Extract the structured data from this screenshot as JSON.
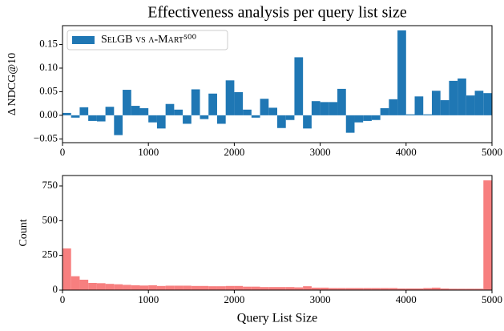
{
  "chart_data": [
    {
      "type": "bar",
      "title": "Effectiveness analysis per query list size",
      "ylabel": "Δ NDCG@10",
      "x": [
        50,
        150,
        250,
        350,
        450,
        550,
        650,
        750,
        850,
        950,
        1050,
        1150,
        1250,
        1350,
        1450,
        1550,
        1650,
        1750,
        1850,
        1950,
        2050,
        2150,
        2250,
        2350,
        2450,
        2550,
        2650,
        2750,
        2850,
        2950,
        3050,
        3150,
        3250,
        3350,
        3450,
        3550,
        3650,
        3750,
        3850,
        3950,
        4050,
        4150,
        4250,
        4350,
        4450,
        4550,
        4650,
        4750,
        4850,
        4950
      ],
      "width": 100,
      "series": [
        {
          "name": "SelGB vs λ-Mart⁵⁰⁰",
          "color": "#1f77b4",
          "values": [
            0.005,
            -0.005,
            0.017,
            -0.012,
            -0.013,
            0.018,
            -0.042,
            0.054,
            0.02,
            0.015,
            -0.015,
            -0.028,
            0.024,
            0.012,
            -0.018,
            0.055,
            -0.008,
            0.046,
            -0.018,
            0.074,
            0.049,
            0.012,
            -0.005,
            0.035,
            0.016,
            -0.027,
            -0.01,
            0.123,
            -0.028,
            0.03,
            0.028,
            0.028,
            0.056,
            -0.037,
            -0.015,
            -0.012,
            -0.01,
            0.015,
            0.034,
            0.18,
            0.002,
            0.04,
            0.002,
            0.052,
            0.032,
            0.073,
            0.078,
            0.042,
            0.052,
            0.047
          ]
        }
      ],
      "legend": "upper left",
      "xlim": [
        0,
        5000
      ],
      "xticks": [
        0,
        1000,
        2000,
        3000,
        4000,
        5000
      ],
      "ylim": [
        -0.058,
        0.19
      ],
      "yticks": [
        {
          "value": -0.05,
          "label": "−0.05"
        },
        {
          "value": 0,
          "label": "0.00"
        },
        0.05,
        {
          "value": 0.1,
          "label": "0.10"
        },
        0.15
      ]
    },
    {
      "type": "histogram",
      "xlabel": "Query List Size",
      "ylabel": "Count",
      "color": "#f77f7f",
      "bins": [
        0,
        100,
        200,
        300,
        400,
        500,
        600,
        700,
        800,
        900,
        1000,
        1100,
        1200,
        1300,
        1400,
        1500,
        1600,
        1700,
        1800,
        1900,
        2000,
        2100,
        2200,
        2300,
        2400,
        2500,
        2600,
        2700,
        2800,
        2900,
        3000,
        3100,
        3200,
        3300,
        3400,
        3500,
        3600,
        3700,
        3800,
        3900,
        4000,
        4100,
        4200,
        4300,
        4400,
        4500,
        4600,
        4700,
        4800,
        4900,
        5000
      ],
      "values": [
        300,
        100,
        75,
        52,
        50,
        45,
        42,
        38,
        35,
        33,
        35,
        30,
        32,
        32,
        32,
        30,
        30,
        28,
        28,
        30,
        30,
        25,
        25,
        22,
        22,
        22,
        22,
        20,
        28,
        18,
        18,
        15,
        15,
        15,
        15,
        15,
        15,
        15,
        15,
        12,
        12,
        12,
        15,
        18,
        12,
        10,
        10,
        10,
        10,
        790
      ],
      "xlim": [
        0,
        5000
      ],
      "xticks": [
        0,
        1000,
        2000,
        3000,
        4000,
        5000
      ],
      "ylim": [
        0,
        825
      ],
      "yticks": [
        0,
        250,
        500,
        750
      ]
    }
  ]
}
